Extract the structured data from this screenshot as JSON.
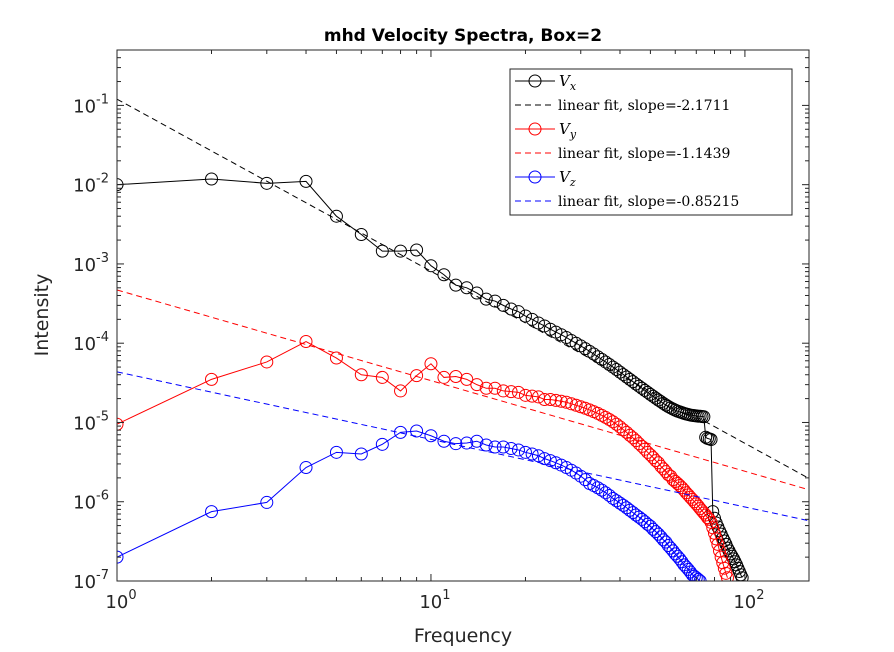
{
  "chart_data": {
    "type": "line",
    "title": "mhd Velocity Spectra, Box=2",
    "xlabel": "Frequency",
    "ylabel": "Intensity",
    "xscale": "log",
    "yscale": "log",
    "xlim": [
      1,
      160
    ],
    "ylim": [
      1e-07,
      0.5
    ],
    "x_ticks": [
      {
        "value": 1,
        "base": "10",
        "exp": "0"
      },
      {
        "value": 10,
        "base": "10",
        "exp": "1"
      },
      {
        "value": 100,
        "base": "10",
        "exp": "2"
      }
    ],
    "y_ticks": [
      {
        "value": 1e-07,
        "base": "10",
        "exp": "-7"
      },
      {
        "value": 1e-06,
        "base": "10",
        "exp": "-6"
      },
      {
        "value": 1e-05,
        "base": "10",
        "exp": "-5"
      },
      {
        "value": 0.0001,
        "base": "10",
        "exp": "-4"
      },
      {
        "value": 0.001,
        "base": "10",
        "exp": "-3"
      },
      {
        "value": 0.01,
        "base": "10",
        "exp": "-2"
      },
      {
        "value": 0.1,
        "base": "10",
        "exp": "-1"
      }
    ],
    "grid": false,
    "legend_position": "top-right",
    "series": [
      {
        "key": "vx",
        "label_main": "V",
        "label_sub": "x",
        "color": "#000000",
        "marker": "circle",
        "x": [
          1,
          2,
          3,
          4,
          5,
          6,
          7,
          8,
          9,
          10,
          11,
          12,
          13,
          14,
          15,
          16,
          17,
          18,
          19,
          20,
          21,
          22,
          23,
          24,
          25,
          26,
          27,
          28,
          29,
          30,
          31,
          32,
          33,
          34,
          35,
          36,
          37,
          38,
          39,
          40,
          41,
          42,
          43,
          44,
          45,
          46,
          47,
          48,
          49,
          50,
          51,
          52,
          53,
          54,
          55,
          56,
          57,
          58,
          59,
          60,
          61,
          62,
          63,
          64,
          65,
          66,
          67,
          68,
          69,
          70,
          71,
          72,
          73,
          74,
          75,
          76,
          77,
          78,
          79,
          80,
          81,
          82,
          83,
          84,
          85,
          86,
          87,
          88,
          89,
          90,
          91,
          92,
          93,
          94,
          95,
          96,
          97,
          98
        ],
        "y": [
          0.01,
          0.0118,
          0.0104,
          0.011,
          0.004,
          0.00235,
          0.00145,
          0.00145,
          0.0015,
          0.00095,
          0.00073,
          0.00054,
          0.0005,
          0.00043,
          0.00036,
          0.00034,
          0.0003,
          0.00027,
          0.00025,
          0.00022,
          0.0002,
          0.00018,
          0.000165,
          0.00015,
          0.000138,
          0.000128,
          0.000118,
          0.000108,
          0.0001,
          9.25e-05,
          8.55e-05,
          7.9e-05,
          7.3e-05,
          6.75e-05,
          6.25e-05,
          5.8e-05,
          5.38e-05,
          5e-05,
          4.65e-05,
          4.32e-05,
          4.02e-05,
          3.75e-05,
          3.5e-05,
          3.27e-05,
          3.06e-05,
          2.87e-05,
          2.7e-05,
          2.54e-05,
          2.4e-05,
          2.26e-05,
          2.14e-05,
          2.03e-05,
          1.92e-05,
          1.83e-05,
          1.74e-05,
          1.66e-05,
          1.59e-05,
          1.53e-05,
          1.48e-05,
          1.43e-05,
          1.39e-05,
          1.36e-05,
          1.33e-05,
          1.3e-05,
          1.28e-05,
          1.26e-05,
          1.24e-05,
          1.23e-05,
          1.22e-05,
          1.21e-05,
          1.2e-05,
          1.2e-05,
          1.19e-05,
          1.18e-05,
          6.5e-06,
          6.3e-06,
          6.2e-06,
          6.1e-06,
          7.5e-07,
          6.2e-07,
          5.4e-07,
          4.8e-07,
          4.3e-07,
          3.9e-07,
          3.5e-07,
          3.2e-07,
          2.9e-07,
          2.6e-07,
          2.4e-07,
          2.2e-07,
          2.05e-07,
          1.9e-07,
          1.75e-07,
          1.6e-07,
          1.45e-07,
          1.32e-07,
          1.2e-07,
          1.1e-07
        ]
      },
      {
        "key": "vx_fit",
        "label": "linear fit, slope=-2.1711",
        "color": "#000000",
        "dashed": true,
        "slope": -2.1711,
        "intercept_at_1": 0.12,
        "x_range": [
          1,
          160
        ]
      },
      {
        "key": "vy",
        "label_main": "V",
        "label_sub": "y",
        "color": "#ff0000",
        "marker": "circle",
        "x": [
          1,
          2,
          3,
          4,
          5,
          6,
          7,
          8,
          9,
          10,
          11,
          12,
          13,
          14,
          15,
          16,
          17,
          18,
          19,
          20,
          21,
          22,
          23,
          24,
          25,
          26,
          27,
          28,
          29,
          30,
          31,
          32,
          33,
          34,
          35,
          36,
          37,
          38,
          39,
          40,
          41,
          42,
          43,
          44,
          45,
          46,
          47,
          48,
          49,
          50,
          51,
          52,
          53,
          54,
          55,
          56,
          57,
          58,
          59,
          60,
          61,
          62,
          63,
          64,
          65,
          66,
          67,
          68,
          69,
          70,
          71,
          72,
          73,
          74,
          75,
          76,
          77,
          78,
          79,
          80,
          81,
          82,
          83,
          84,
          85,
          86,
          87,
          88
        ],
        "y": [
          9.5e-06,
          3.5e-05,
          5.8e-05,
          0.000105,
          6.5e-05,
          4e-05,
          3.7e-05,
          2.5e-05,
          3.9e-05,
          5.5e-05,
          3.7e-05,
          3.8e-05,
          3.5e-05,
          3e-05,
          2.7e-05,
          2.7e-05,
          2.5e-05,
          2.45e-05,
          2.4e-05,
          2.2e-05,
          2.15e-05,
          2.1e-05,
          1.95e-05,
          1.95e-05,
          1.9e-05,
          1.85e-05,
          1.8e-05,
          1.72e-05,
          1.65e-05,
          1.58e-05,
          1.51e-05,
          1.44e-05,
          1.37e-05,
          1.3e-05,
          1.23e-05,
          1.16e-05,
          1.09e-05,
          1.02e-05,
          9.5e-06,
          8.8e-06,
          8.1e-06,
          7.5e-06,
          6.9e-06,
          6.4e-06,
          5.9e-06,
          5.4e-06,
          5e-06,
          4.6e-06,
          4.2e-06,
          3.9e-06,
          3.6e-06,
          3.3e-06,
          3.1e-06,
          2.8e-06,
          2.6e-06,
          2.4e-06,
          2.2e-06,
          2.1e-06,
          1.9e-06,
          1.8e-06,
          1.7e-06,
          1.6e-06,
          1.5e-06,
          1.4e-06,
          1.3e-06,
          1.22e-06,
          1.14e-06,
          1.07e-06,
          1e-06,
          9.4e-07,
          8.8e-07,
          8.2e-07,
          7.7e-07,
          7.2e-07,
          6.8e-07,
          6.3e-07,
          6e-07,
          5.5e-07,
          4.7e-07,
          4e-07,
          3.4e-07,
          2.9e-07,
          2.4e-07,
          2e-07,
          1.7e-07,
          1.45e-07,
          1.25e-07,
          1.1e-07
        ]
      },
      {
        "key": "vy_fit",
        "label": "linear fit, slope=-1.1439",
        "color": "#ff0000",
        "dashed": true,
        "slope": -1.1439,
        "intercept_at_1": 0.00047,
        "x_range": [
          1,
          160
        ]
      },
      {
        "key": "vz",
        "label_main": "V",
        "label_sub": "z",
        "color": "#0000ff",
        "marker": "circle",
        "x": [
          1,
          2,
          3,
          4,
          5,
          6,
          7,
          8,
          9,
          10,
          11,
          12,
          13,
          14,
          15,
          16,
          17,
          18,
          19,
          20,
          21,
          22,
          23,
          24,
          25,
          26,
          27,
          28,
          29,
          30,
          31,
          32,
          33,
          34,
          35,
          36,
          37,
          38,
          39,
          40,
          41,
          42,
          43,
          44,
          45,
          46,
          47,
          48,
          49,
          50,
          51,
          52,
          53,
          54,
          55,
          56,
          57,
          58,
          59,
          60,
          61,
          62,
          63,
          64,
          65,
          66,
          67,
          68,
          69,
          70,
          71,
          72
        ],
        "y": [
          2e-07,
          7.5e-07,
          9.8e-07,
          2.7e-06,
          4.2e-06,
          4e-06,
          5.3e-06,
          7.5e-06,
          7.8e-06,
          6.8e-06,
          5.8e-06,
          5.4e-06,
          5.5e-06,
          5.8e-06,
          5.2e-06,
          4.9e-06,
          4.9e-06,
          4.7e-06,
          4.5e-06,
          4.2e-06,
          4e-06,
          3.8e-06,
          3.5e-06,
          3.3e-06,
          3.1e-06,
          2.9e-06,
          2.7e-06,
          2.5e-06,
          2.3e-06,
          2.1e-06,
          1.9e-06,
          1.7e-06,
          1.6e-06,
          1.5e-06,
          1.4e-06,
          1.3e-06,
          1.2e-06,
          1.1e-06,
          1.03e-06,
          9.6e-07,
          9e-07,
          8.4e-07,
          7.8e-07,
          7.3e-07,
          6.8e-07,
          6.4e-07,
          6e-07,
          5.6e-07,
          5.2e-07,
          4.9e-07,
          4.5e-07,
          4.2e-07,
          3.9e-07,
          3.6e-07,
          3.3e-07,
          3.1e-07,
          2.8e-07,
          2.6e-07,
          2.4e-07,
          2.2e-07,
          2.05e-07,
          1.9e-07,
          1.75e-07,
          1.6e-07,
          1.5e-07,
          1.4e-07,
          1.3e-07,
          1.2e-07,
          1.15e-07,
          1.1e-07,
          1.05e-07,
          1e-07
        ]
      },
      {
        "key": "vz_fit",
        "label": "linear fit, slope=-0.85215",
        "color": "#0000ff",
        "dashed": true,
        "slope": -0.85215,
        "intercept_at_1": 4.35e-05,
        "x_range": [
          1,
          160
        ]
      }
    ]
  }
}
